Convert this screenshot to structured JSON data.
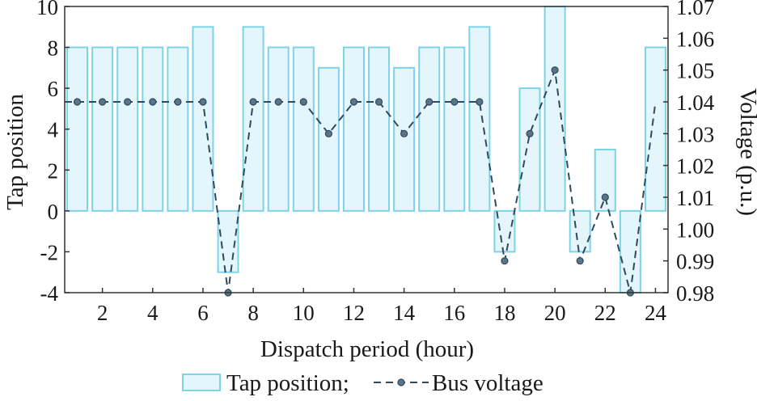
{
  "chart_data": {
    "type": "bar",
    "title": "",
    "x": [
      1,
      2,
      3,
      4,
      5,
      6,
      7,
      8,
      9,
      10,
      11,
      12,
      13,
      14,
      15,
      16,
      17,
      18,
      19,
      20,
      21,
      22,
      23,
      24
    ],
    "x_ticks": [
      "2",
      "4",
      "6",
      "8",
      "10",
      "12",
      "14",
      "16",
      "18",
      "20",
      "22",
      "24"
    ],
    "x_tick_values": [
      2,
      4,
      6,
      8,
      10,
      12,
      14,
      16,
      18,
      20,
      22,
      24
    ],
    "xlabel": "Dispatch period (hour)",
    "ylabel_left": "Tap position",
    "ylabel_right": "Voltage (p.u.)",
    "ylim_left": [
      -4,
      10
    ],
    "ylim_right": [
      0.98,
      1.07
    ],
    "y_ticks_left": [
      "-4",
      "-2",
      "0",
      "2",
      "4",
      "6",
      "8",
      "10"
    ],
    "y_tick_values_left": [
      -4,
      -2,
      0,
      2,
      4,
      6,
      8,
      10
    ],
    "y_ticks_right": [
      "0.98",
      "0.99",
      "1.00",
      "1.01",
      "1.02",
      "1.03",
      "1.04",
      "1.05",
      "1.06",
      "1.07"
    ],
    "y_tick_values_right": [
      0.98,
      0.99,
      1.0,
      1.01,
      1.02,
      1.03,
      1.04,
      1.05,
      1.06,
      1.07
    ],
    "series": [
      {
        "name": "Tap position",
        "kind": "bar",
        "axis": "left",
        "values": [
          8,
          8,
          8,
          8,
          8,
          9,
          -3,
          9,
          8,
          8,
          7,
          8,
          8,
          7,
          8,
          8,
          9,
          -2,
          6,
          10,
          -2,
          3,
          -4,
          8
        ],
        "fill": "#e4f5fc",
        "stroke": "#7dd3e8"
      },
      {
        "name": "Bus voltage",
        "kind": "line",
        "axis": "right",
        "values": [
          1.04,
          1.04,
          1.04,
          1.04,
          1.04,
          1.04,
          0.98,
          1.04,
          1.04,
          1.04,
          1.03,
          1.04,
          1.04,
          1.03,
          1.04,
          1.04,
          1.04,
          0.99,
          1.03,
          1.05,
          0.99,
          1.01,
          0.98,
          1.04
        ],
        "color": "#2f4a5e"
      }
    ],
    "legend": {
      "position": "bottom",
      "text": [
        "Tap position;",
        "Bus voltage"
      ]
    },
    "grid": false
  }
}
